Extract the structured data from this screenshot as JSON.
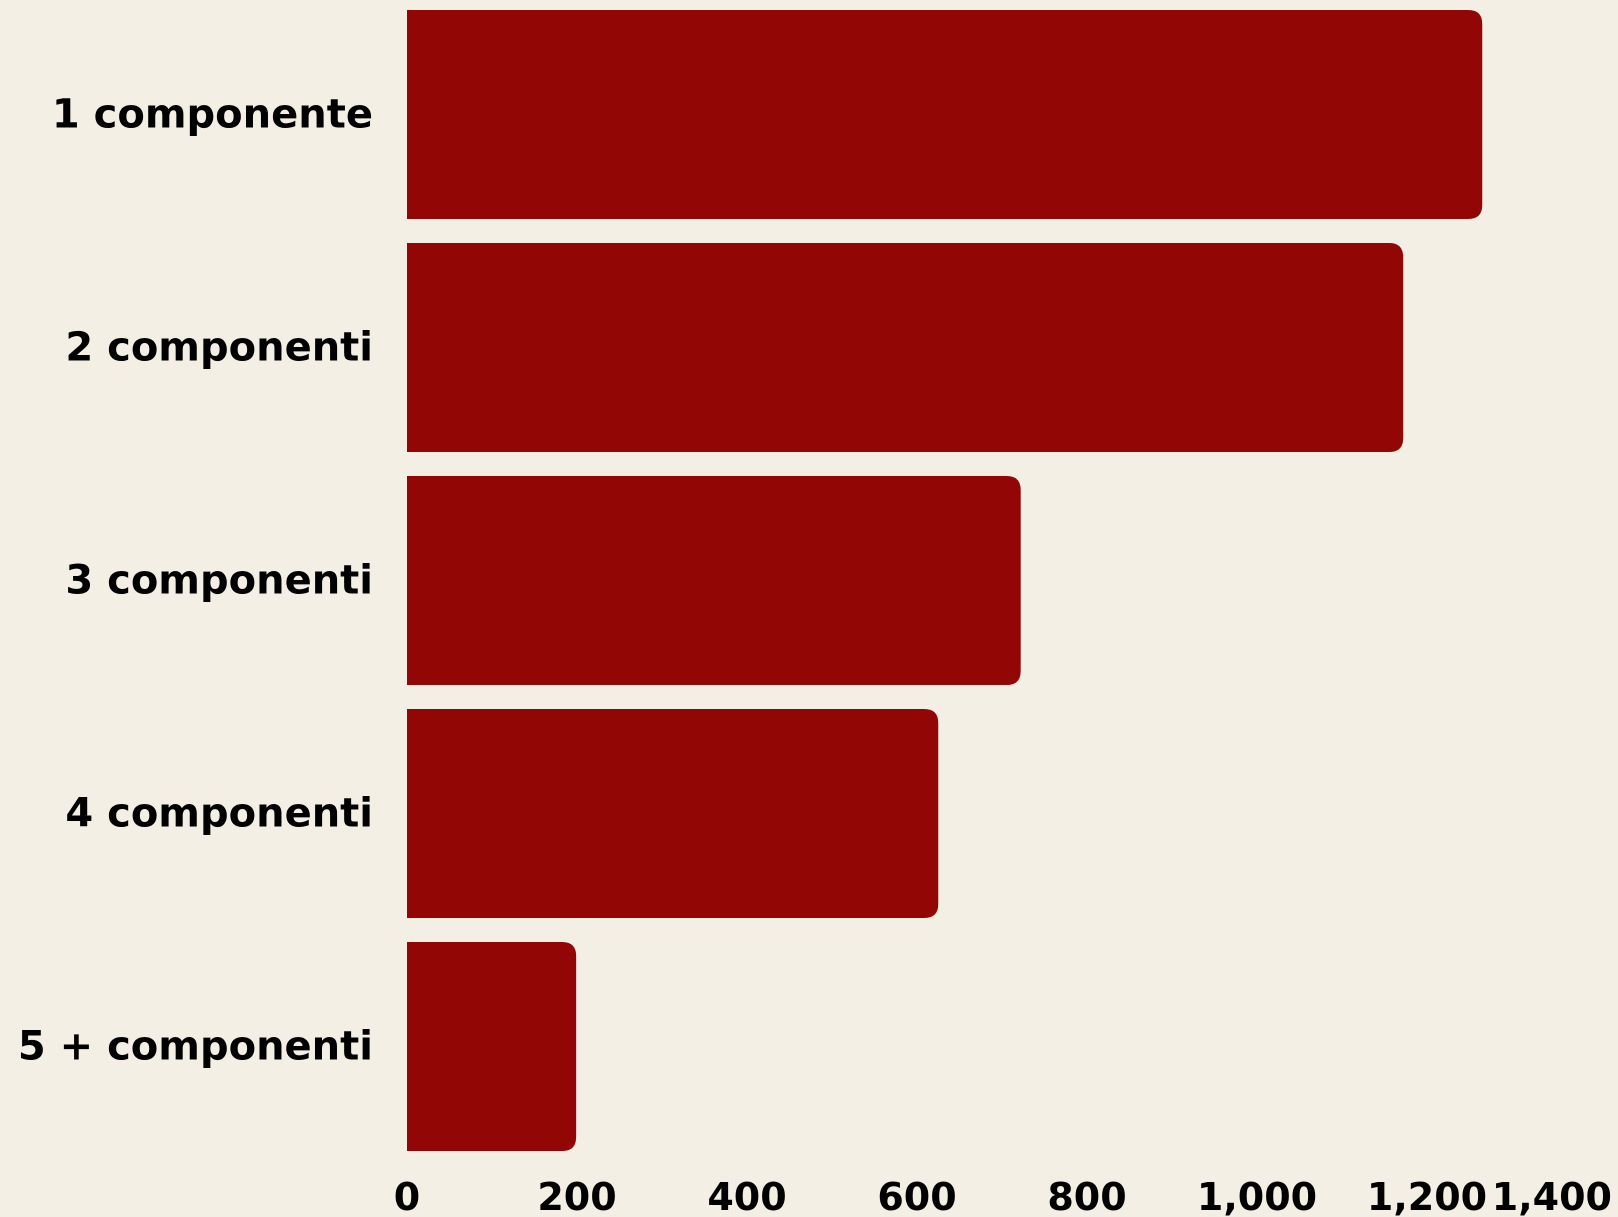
{
  "chart_data": {
    "type": "bar",
    "orientation": "horizontal",
    "title": "",
    "xlabel": "",
    "ylabel": "",
    "categories": [
      "1 componente",
      "2 componenti",
      "3 componenti",
      "4 componenti",
      "5 + componenti"
    ],
    "values": [
      1265,
      1172,
      722,
      625,
      199
    ],
    "xlim": [
      0,
      1400
    ],
    "x_ticks": [
      0,
      200,
      400,
      600,
      800,
      1000,
      1200,
      1400
    ],
    "x_tick_labels": [
      "0",
      "200",
      "400",
      "600",
      "800",
      "1,000",
      "1,200",
      "1,400"
    ],
    "grid": false,
    "legend": "none",
    "bar_color": "#930606",
    "background_color": "#f4efe5"
  }
}
